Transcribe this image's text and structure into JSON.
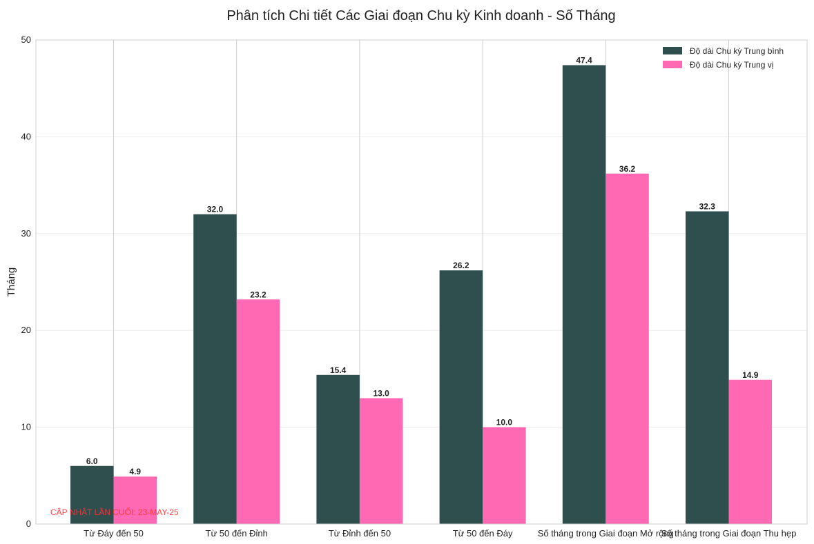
{
  "chart_data": {
    "type": "bar",
    "title": "Phân tích Chi tiết Các Giai đoạn Chu kỳ Kinh doanh - Số Tháng",
    "xlabel": "",
    "ylabel": "Tháng",
    "ylim": [
      0,
      50
    ],
    "yticks": [
      "0",
      "10",
      "20",
      "30",
      "40",
      "50"
    ],
    "categories": [
      "Từ Đáy đến 50",
      "Từ 50 đến Đỉnh",
      "Từ Đỉnh đến 50",
      "Từ 50 đến Đáy",
      "Số tháng trong Giai đoạn Mở rộng",
      "Số tháng trong Giai đoạn Thu hẹp"
    ],
    "series": [
      {
        "name": "Độ dài Chu kỳ Trung bình",
        "color": "#2f4f4f",
        "values": [
          6.0,
          32.0,
          15.4,
          26.2,
          47.4,
          32.3
        ]
      },
      {
        "name": "Độ dài Chu kỳ Trung vị",
        "color": "#ff69b4",
        "values": [
          4.9,
          23.2,
          13.0,
          10.0,
          36.2,
          14.9
        ]
      }
    ],
    "legend_position": "top-right",
    "grid": "y"
  },
  "annotation": {
    "text": "CẬP NHẬT LẦN CUỐI: 23-MAY-25",
    "color": "#ff3333"
  }
}
